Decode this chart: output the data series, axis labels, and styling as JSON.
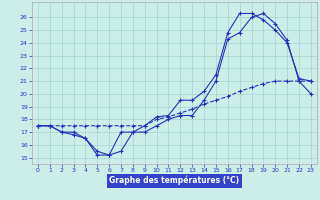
{
  "hours": [
    0,
    1,
    2,
    3,
    4,
    5,
    6,
    7,
    8,
    9,
    10,
    11,
    12,
    13,
    14,
    15,
    16,
    17,
    18,
    19,
    20,
    21,
    22,
    23
  ],
  "series1": [
    17.5,
    17.5,
    17.0,
    16.8,
    16.5,
    15.2,
    15.2,
    17.0,
    17.0,
    17.5,
    18.2,
    18.3,
    19.5,
    19.5,
    20.2,
    21.5,
    24.8,
    26.3,
    26.3,
    25.8,
    25.0,
    24.0,
    21.2,
    21.0
  ],
  "series2": [
    17.5,
    17.5,
    17.0,
    17.0,
    16.5,
    15.5,
    15.2,
    15.5,
    17.0,
    17.0,
    17.5,
    18.0,
    18.3,
    18.3,
    19.5,
    21.0,
    24.3,
    24.8,
    26.0,
    26.3,
    25.5,
    24.2,
    21.0,
    20.0
  ],
  "series3": [
    17.5,
    17.5,
    17.5,
    17.5,
    17.5,
    17.5,
    17.5,
    17.5,
    17.5,
    17.5,
    18.0,
    18.2,
    18.5,
    18.8,
    19.2,
    19.5,
    19.8,
    20.2,
    20.5,
    20.8,
    21.0,
    21.0,
    21.0,
    21.0
  ],
  "line_color": "#2233bb",
  "bg_color": "#cceee8",
  "grid_color": "#99cccc",
  "xlabel": "Graphe des températures (°C)",
  "xlabel_bgcolor": "#3344cc",
  "tick_color": "#2233bb",
  "ylim": [
    14.5,
    27.2
  ],
  "xlim": [
    -0.5,
    23.5
  ],
  "yticks": [
    15,
    16,
    17,
    18,
    19,
    20,
    21,
    22,
    23,
    24,
    25,
    26
  ],
  "xticks": [
    0,
    1,
    2,
    3,
    4,
    5,
    6,
    7,
    8,
    9,
    10,
    11,
    12,
    13,
    14,
    15,
    16,
    17,
    18,
    19,
    20,
    21,
    22,
    23
  ],
  "marker": "+"
}
